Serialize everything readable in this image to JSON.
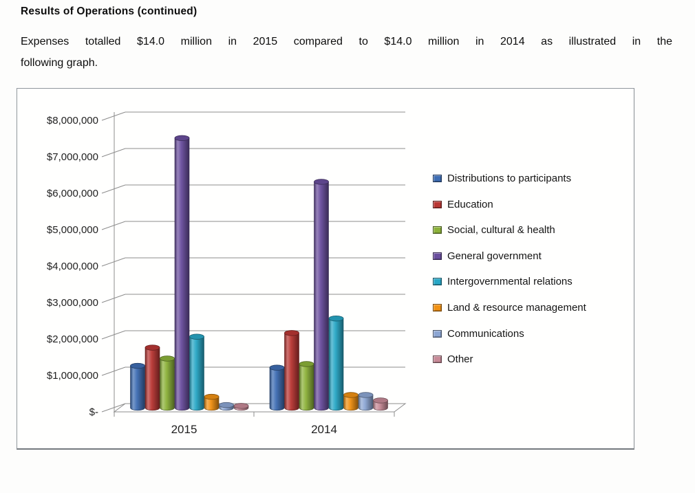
{
  "document": {
    "heading": "Results of Operations (continued)",
    "paragraph_line1": "Expenses totalled $14.0 million in 2015 compared to $14.0 million in 2014 as illustrated in the",
    "paragraph_line2": "following graph."
  },
  "chart_data": {
    "type": "bar",
    "subtype": "3d-cylinder",
    "title": "",
    "xlabel": "",
    "ylabel": "",
    "categories": [
      "2015",
      "2014"
    ],
    "series": [
      {
        "name": "Distributions to participants",
        "color": "#3E6DB3",
        "values": [
          1150000,
          1100000
        ]
      },
      {
        "name": "Education",
        "color": "#B93734",
        "values": [
          1650000,
          2050000
        ]
      },
      {
        "name": "Social, cultural & health",
        "color": "#8CB23A",
        "values": [
          1350000,
          1200000
        ]
      },
      {
        "name": "General government",
        "color": "#6A4E9E",
        "values": [
          7400000,
          6200000
        ]
      },
      {
        "name": "Intergovernmental relations",
        "color": "#28A7C6",
        "values": [
          1950000,
          2450000
        ]
      },
      {
        "name": "Land & resource management",
        "color": "#F19113",
        "values": [
          300000,
          350000
        ]
      },
      {
        "name": "Communications",
        "color": "#8CA6D3",
        "values": [
          75000,
          350000
        ]
      },
      {
        "name": "Other",
        "color": "#C78A97",
        "values": [
          50000,
          200000
        ]
      }
    ],
    "y_axis": {
      "min": 0,
      "max": 8000000,
      "step": 1000000,
      "tick_labels": [
        "$-",
        "$1,000,000",
        "$2,000,000",
        "$3,000,000",
        "$4,000,000",
        "$5,000,000",
        "$6,000,000",
        "$7,000,000",
        "$8,000,000"
      ]
    },
    "legend_position": "right",
    "gridlines": true
  }
}
